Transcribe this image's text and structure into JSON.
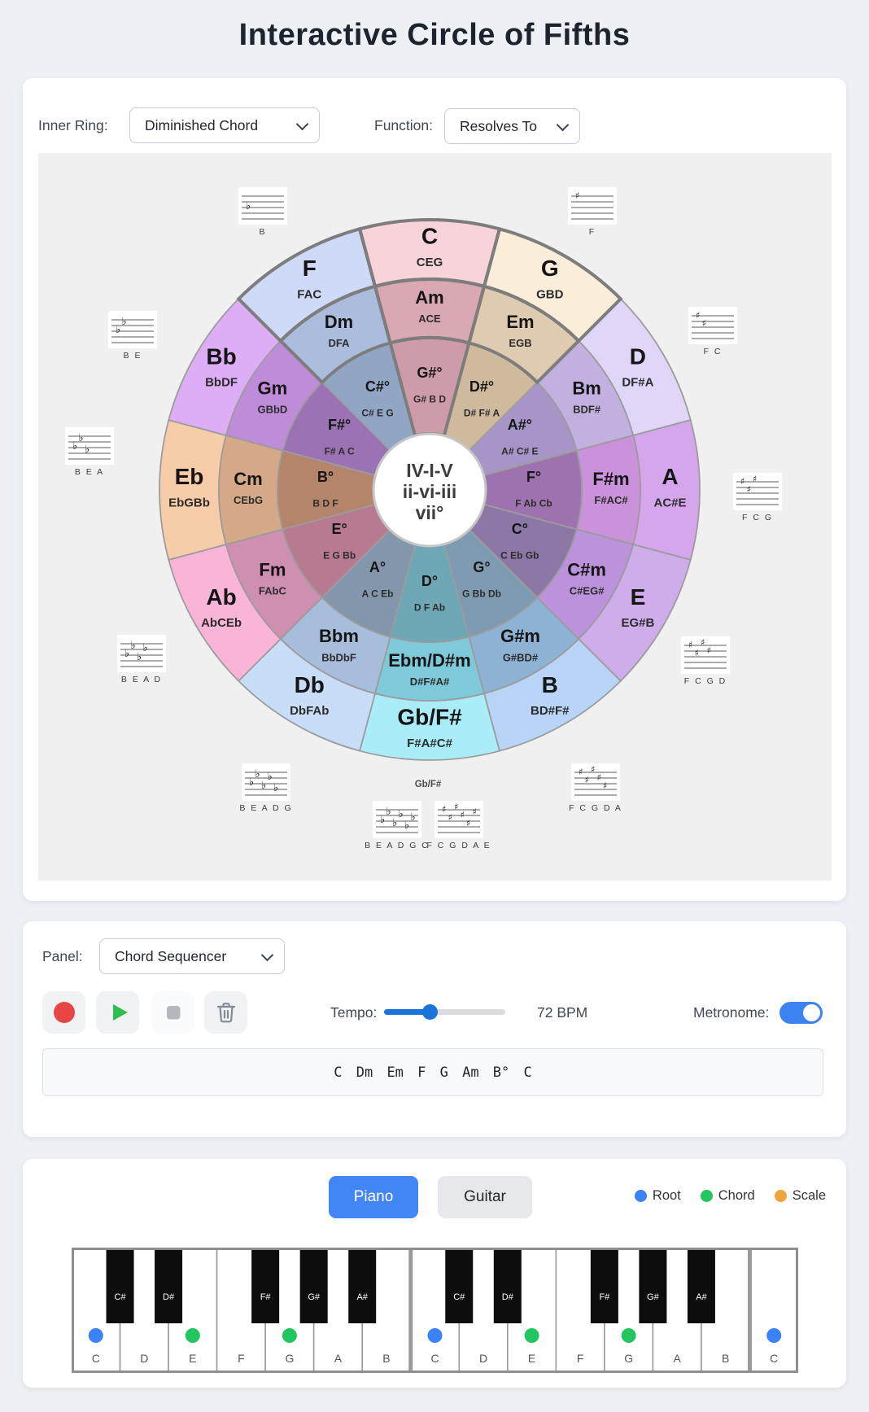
{
  "title": "Interactive Circle of Fifths",
  "accent_blue": "#4285f4",
  "controls": {
    "inner_ring_label": "Inner Ring:",
    "inner_ring_value": "Diminished Chord",
    "function_label": "Function:",
    "function_value": "Resolves To"
  },
  "circle": {
    "center_lines": [
      "IV-I-V",
      "ii-vi-iii",
      "vii°"
    ],
    "group_label": "Gb/F#",
    "segments": [
      {
        "major": "C",
        "major_notes": "CEG",
        "minor": "Am",
        "minor_notes": "ACE",
        "dim": "G#°",
        "dim_notes": "G# B D",
        "colors": [
          "#f9d3da",
          "#d9a8b3",
          "#ce9ca8"
        ],
        "highlight": [
          true,
          true,
          true
        ]
      },
      {
        "major": "G",
        "major_notes": "GBD",
        "minor": "Em",
        "minor_notes": "EGB",
        "dim": "D#°",
        "dim_notes": "D# F# A",
        "colors": [
          "#faeed8",
          "#decbb0",
          "#cfba9e"
        ],
        "highlight": [
          true,
          true,
          false
        ]
      },
      {
        "major": "D",
        "major_notes": "DF#A",
        "minor": "Bm",
        "minor_notes": "BDF#",
        "dim": "A#°",
        "dim_notes": "A# C# E",
        "colors": [
          "#e2d6f8",
          "#c2b1e0",
          "#a795c7"
        ],
        "highlight": [
          false,
          false,
          false
        ]
      },
      {
        "major": "A",
        "major_notes": "AC#E",
        "minor": "F#m",
        "minor_notes": "F#AC#",
        "dim": "F°",
        "dim_notes": "F Ab Cb",
        "colors": [
          "#d5a6ec",
          "#c992da",
          "#9d72ae"
        ],
        "highlight": [
          false,
          false,
          false
        ]
      },
      {
        "major": "E",
        "major_notes": "EG#B",
        "minor": "C#m",
        "minor_notes": "C#EG#",
        "dim": "C°",
        "dim_notes": "C Eb Gb",
        "colors": [
          "#cfacea",
          "#bc92dc",
          "#8d77a6"
        ],
        "highlight": [
          false,
          false,
          false
        ]
      },
      {
        "major": "B",
        "major_notes": "BD#F#",
        "minor": "G#m",
        "minor_notes": "G#BD#",
        "dim": "G°",
        "dim_notes": "G Bb Db",
        "colors": [
          "#b8d5f7",
          "#8eb2d3",
          "#7e9bb1"
        ],
        "highlight": [
          false,
          false,
          false
        ]
      },
      {
        "major": "Gb/F#",
        "major_notes": "F#A#C#",
        "minor": "Ebm/D#m",
        "minor_notes": "D#F#A#",
        "dim": "D°",
        "dim_notes": "D F Ab",
        "colors": [
          "#a9edf9",
          "#7ec9da",
          "#6fa8b5"
        ],
        "highlight": [
          false,
          false,
          false
        ]
      },
      {
        "major": "Db",
        "major_notes": "DbFAb",
        "minor": "Bbm",
        "minor_notes": "BbDbF",
        "dim": "A°",
        "dim_notes": "A C Eb",
        "colors": [
          "#c8ddf8",
          "#a6bedb",
          "#8496ab"
        ],
        "highlight": [
          false,
          false,
          false
        ]
      },
      {
        "major": "Ab",
        "major_notes": "AbCEb",
        "minor": "Fm",
        "minor_notes": "FAbC",
        "dim": "E°",
        "dim_notes": "E G Bb",
        "colors": [
          "#f9b4d8",
          "#ce8fb0",
          "#b77a90"
        ],
        "highlight": [
          false,
          false,
          false
        ]
      },
      {
        "major": "Eb",
        "major_notes": "EbGBb",
        "minor": "Cm",
        "minor_notes": "CEbG",
        "dim": "B°",
        "dim_notes": "B D F",
        "colors": [
          "#f7cda9",
          "#d5a987",
          "#b4846b"
        ],
        "highlight": [
          false,
          false,
          false
        ]
      },
      {
        "major": "Bb",
        "major_notes": "BbDF",
        "minor": "Gm",
        "minor_notes": "GBbD",
        "dim": "F#°",
        "dim_notes": "F# A C",
        "colors": [
          "#ddaef5",
          "#be8cd8",
          "#9b73b4"
        ],
        "highlight": [
          false,
          false,
          false
        ]
      },
      {
        "major": "F",
        "major_notes": "FAC",
        "minor": "Dm",
        "minor_notes": "DFA",
        "dim": "C#°",
        "dim_notes": "C# E G",
        "colors": [
          "#cedaf8",
          "#abbcdd",
          "#91a5c5"
        ],
        "highlight": [
          true,
          true,
          false
        ]
      }
    ]
  },
  "key_signatures": [
    {
      "label": "B",
      "type": "flat",
      "count": 1
    },
    {
      "label": "F",
      "type": "sharp",
      "count": 1
    },
    {
      "label": "B E",
      "type": "flat",
      "count": 2
    },
    {
      "label": "F C",
      "type": "sharp",
      "count": 2
    },
    {
      "label": "B E A",
      "type": "flat",
      "count": 3
    },
    {
      "label": "F C G",
      "type": "sharp",
      "count": 3
    },
    {
      "label": "B E A D",
      "type": "flat",
      "count": 4
    },
    {
      "label": "F C G D",
      "type": "sharp",
      "count": 4
    },
    {
      "label": "B E A D G",
      "type": "flat",
      "count": 5
    },
    {
      "label": "F C G D A",
      "type": "sharp",
      "count": 5
    },
    {
      "label": "B E A D G C",
      "type": "flat",
      "count": 6
    },
    {
      "label": "F C G D A E",
      "type": "sharp",
      "count": 6
    }
  ],
  "sequencer": {
    "panel_label": "Panel:",
    "panel_value": "Chord Sequencer",
    "tempo_label": "Tempo:",
    "tempo_bpm": "72 BPM",
    "tempo_percent": 38,
    "metronome_label": "Metronome:",
    "metronome_on": true,
    "sequence": "C Dm Em F G Am B° C",
    "colors": {
      "record": "#e84545",
      "play": "#2ebd4e",
      "stop": "#b4b7bd",
      "trash": "#818b98"
    }
  },
  "instrument": {
    "tabs": [
      {
        "label": "Piano",
        "active": true
      },
      {
        "label": "Guitar",
        "active": false
      }
    ],
    "legend": [
      {
        "label": "Root",
        "type": "root"
      },
      {
        "label": "Chord",
        "type": "chord"
      },
      {
        "label": "Scale",
        "type": "scale"
      }
    ],
    "piano": {
      "dot_colors": {
        "root": "#3b82f6",
        "chord": "#22c55e",
        "scale": "#f0a43c"
      },
      "white_keys": [
        {
          "label": "C",
          "dot": "root"
        },
        {
          "label": "D",
          "dot": null
        },
        {
          "label": "E",
          "dot": "chord"
        },
        {
          "label": "F",
          "dot": null
        },
        {
          "label": "G",
          "dot": "chord"
        },
        {
          "label": "A",
          "dot": null
        },
        {
          "label": "B",
          "dot": null
        },
        {
          "label": "C",
          "dot": "root"
        },
        {
          "label": "D",
          "dot": null
        },
        {
          "label": "E",
          "dot": "chord"
        },
        {
          "label": "F",
          "dot": null
        },
        {
          "label": "G",
          "dot": "chord"
        },
        {
          "label": "A",
          "dot": null
        },
        {
          "label": "B",
          "dot": null
        },
        {
          "label": "C",
          "dot": "root"
        }
      ],
      "black_keys": [
        {
          "label": "C#"
        },
        {
          "label": "D#"
        },
        {
          "label": "F#"
        },
        {
          "label": "G#"
        },
        {
          "label": "A#"
        },
        {
          "label": "C#"
        },
        {
          "label": "D#"
        },
        {
          "label": "F#"
        },
        {
          "label": "G#"
        },
        {
          "label": "A#"
        }
      ]
    }
  }
}
